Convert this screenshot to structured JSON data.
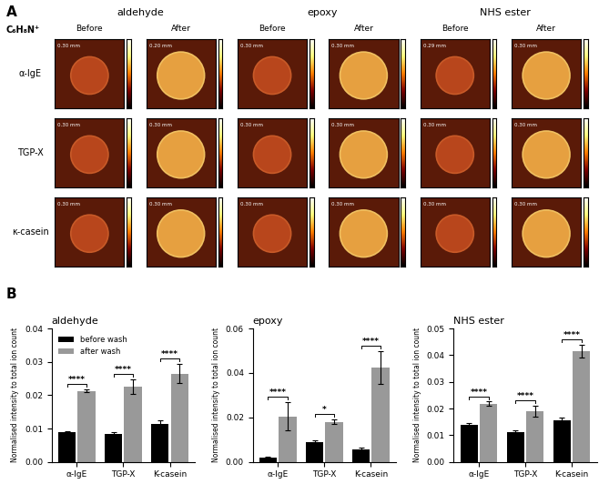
{
  "panel_a": {
    "label": "A",
    "ion": "C₆H₈N⁺",
    "chemistries": [
      "aldehyde",
      "epoxy",
      "NHS ester"
    ],
    "conditions": [
      "Before",
      "After"
    ],
    "proteins": [
      "α-IgE",
      "TGP-X",
      "κ-casein"
    ],
    "scale_bars": [
      [
        "0.30 mm",
        "0.20 mm",
        "0.30 mm",
        "0.30 mm",
        "0.29 mm",
        "0.30 mm"
      ],
      [
        "0.30 mm",
        "0.30 mm",
        "0.30 mm",
        "0.30 mm",
        "0.30 mm",
        "0.30 mm"
      ],
      [
        "0.30 mm",
        "0.30 mm",
        "0.30 mm",
        "0.30 mm",
        "0.30 mm",
        "0.30 mm"
      ]
    ]
  },
  "panel_b_label": "B",
  "chart_data": [
    {
      "type": "bar",
      "title": "aldehyde",
      "ylabel": "Normalised intensity to total ion count",
      "categories": [
        "α-IgE",
        "TGP-X",
        "K-casein"
      ],
      "series": [
        {
          "name": "before wash",
          "color": "#000000",
          "values": [
            0.009,
            0.0085,
            0.0115
          ],
          "errors": [
            0.0002,
            0.0003,
            0.001
          ]
        },
        {
          "name": "after wash",
          "color": "#999999",
          "values": [
            0.0213,
            0.0225,
            0.0265
          ],
          "errors": [
            0.0005,
            0.0022,
            0.0028
          ]
        }
      ],
      "annotations": [
        "****",
        "****",
        "****"
      ],
      "legend": "upper left",
      "ylim": [
        0,
        0.04
      ],
      "yticks": [
        {
          "value": 0,
          "label": "0.00"
        },
        {
          "value": 0.01,
          "label": "0.01"
        },
        {
          "value": 0.02,
          "label": "0.02"
        },
        {
          "value": 0.03,
          "label": "0.03"
        },
        {
          "value": 0.04,
          "label": "0.04"
        }
      ]
    },
    {
      "type": "bar",
      "title": "epoxy",
      "ylabel": "Normalised intensity to total ion count",
      "categories": [
        "α-IgE",
        "TGP-X",
        "K-casein"
      ],
      "series": [
        {
          "name": "before wash",
          "color": "#000000",
          "values": [
            0.002,
            0.009,
            0.0055
          ],
          "errors": [
            0.0005,
            0.0008,
            0.001
          ]
        },
        {
          "name": "after wash",
          "color": "#999999",
          "values": [
            0.0205,
            0.018,
            0.0425
          ],
          "errors": [
            0.0065,
            0.001,
            0.0075
          ]
        }
      ],
      "annotations": [
        "****",
        "*",
        "****"
      ],
      "ylim": [
        0,
        0.06
      ],
      "yticks": [
        {
          "value": 0,
          "label": "0.00"
        },
        {
          "value": 0.02,
          "label": "0.02"
        },
        {
          "value": 0.04,
          "label": "0.04"
        },
        {
          "value": 0.06,
          "label": "0.06"
        }
      ]
    },
    {
      "type": "bar",
      "title": "NHS ester",
      "ylabel": "Normalised intensity to total ion count",
      "categories": [
        "α-IgE",
        "TGP-X",
        "K-casein"
      ],
      "series": [
        {
          "name": "before wash",
          "color": "#000000",
          "values": [
            0.014,
            0.0113,
            0.0155
          ],
          "errors": [
            0.0005,
            0.0007,
            0.0012
          ]
        },
        {
          "name": "after wash",
          "color": "#999999",
          "values": [
            0.0218,
            0.019,
            0.0415
          ],
          "errors": [
            0.0008,
            0.0022,
            0.0025
          ]
        }
      ],
      "annotations": [
        "****",
        "****",
        "****"
      ],
      "ylim": [
        0,
        0.05
      ],
      "yticks": [
        {
          "value": 0,
          "label": "0.00"
        },
        {
          "value": 0.01,
          "label": "0.01"
        },
        {
          "value": 0.02,
          "label": "0.02"
        },
        {
          "value": 0.03,
          "label": "0.03"
        },
        {
          "value": 0.04,
          "label": "0.04"
        },
        {
          "value": 0.05,
          "label": "0.05"
        }
      ]
    }
  ]
}
